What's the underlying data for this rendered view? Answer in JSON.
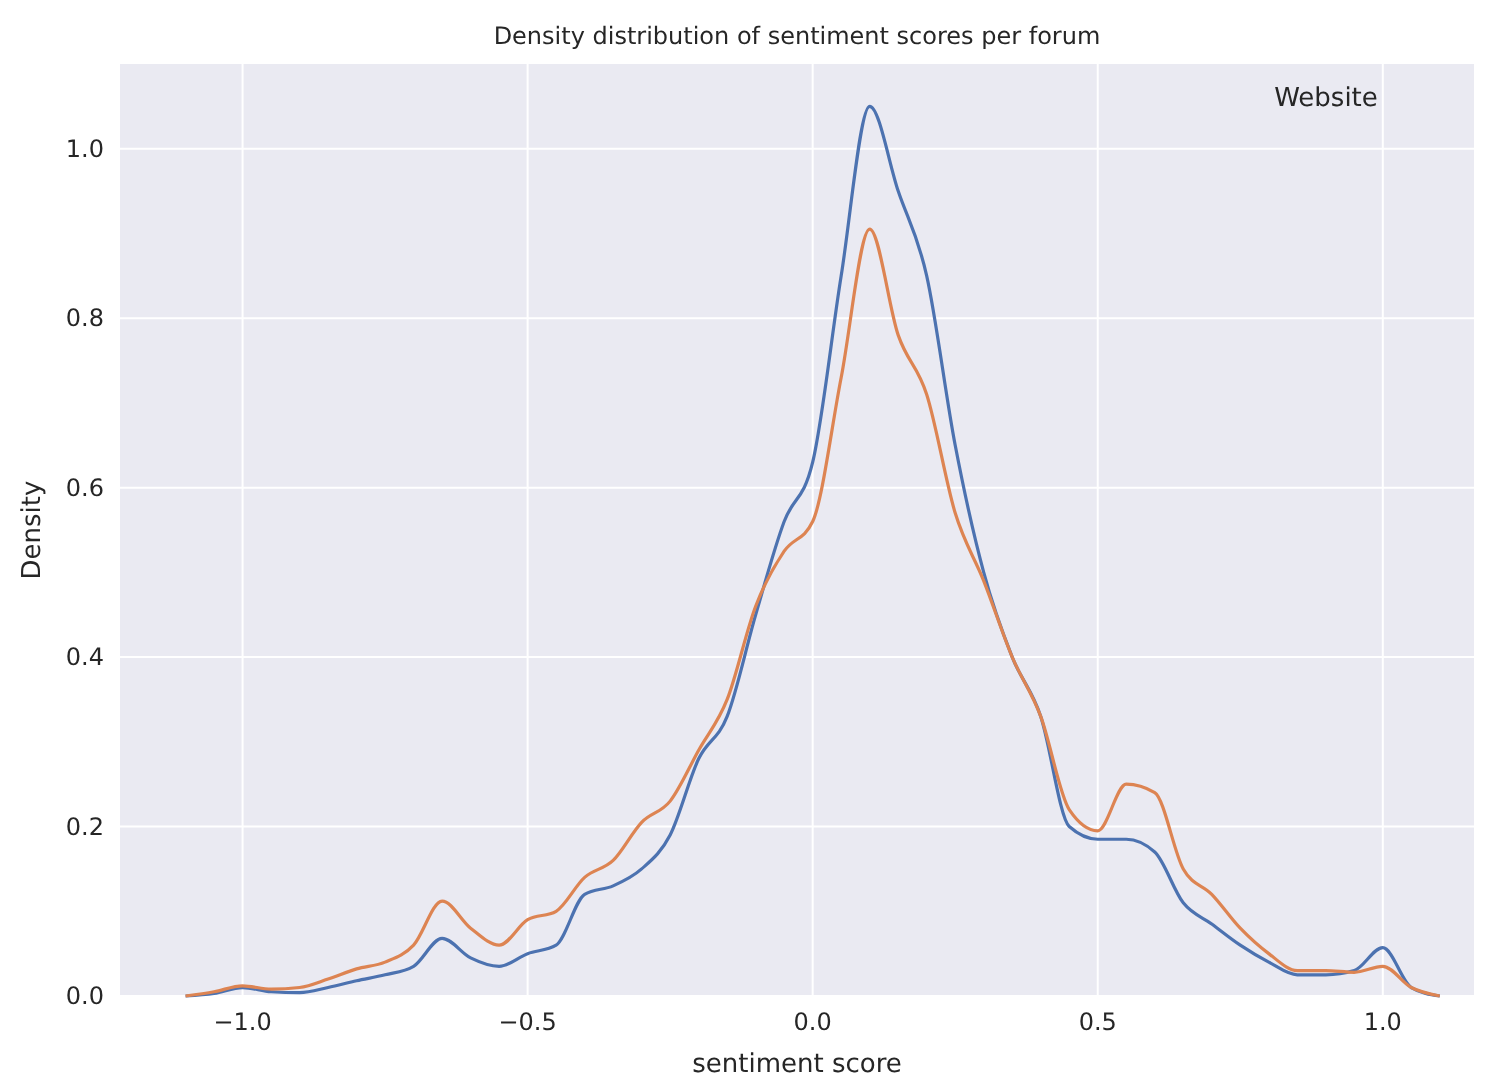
{
  "chart_data": {
    "type": "line",
    "title": "Density distribution of sentiment scores per forum",
    "xlabel": "sentiment score",
    "ylabel": "Density",
    "legend_title": "Website",
    "grid": true,
    "x": [
      -1.1,
      -1.05,
      -1.0,
      -0.95,
      -0.9,
      -0.85,
      -0.8,
      -0.75,
      -0.7,
      -0.65,
      -0.6,
      -0.55,
      -0.5,
      -0.45,
      -0.4,
      -0.35,
      -0.3,
      -0.25,
      -0.2,
      -0.15,
      -0.1,
      -0.05,
      0.0,
      0.05,
      0.1,
      0.15,
      0.2,
      0.25,
      0.3,
      0.35,
      0.4,
      0.45,
      0.5,
      0.55,
      0.6,
      0.65,
      0.7,
      0.75,
      0.8,
      0.85,
      0.9,
      0.95,
      1.0,
      1.05,
      1.1
    ],
    "series": [
      {
        "color": "#4c72b0",
        "values": [
          0,
          0.003,
          0.01,
          0.005,
          0.004,
          0.01,
          0.018,
          0.025,
          0.035,
          0.068,
          0.045,
          0.035,
          0.05,
          0.06,
          0.12,
          0.13,
          0.15,
          0.19,
          0.28,
          0.33,
          0.45,
          0.56,
          0.63,
          0.85,
          1.05,
          0.95,
          0.85,
          0.65,
          0.5,
          0.4,
          0.33,
          0.2,
          0.185,
          0.185,
          0.17,
          0.11,
          0.085,
          0.06,
          0.04,
          0.025,
          0.025,
          0.03,
          0.057,
          0.01,
          0
        ]
      },
      {
        "color": "#dd8452",
        "values": [
          0,
          0.005,
          0.012,
          0.008,
          0.01,
          0.02,
          0.032,
          0.04,
          0.06,
          0.112,
          0.08,
          0.06,
          0.09,
          0.1,
          0.14,
          0.16,
          0.205,
          0.23,
          0.29,
          0.35,
          0.46,
          0.525,
          0.56,
          0.73,
          0.905,
          0.78,
          0.71,
          0.57,
          0.49,
          0.4,
          0.33,
          0.22,
          0.195,
          0.25,
          0.24,
          0.15,
          0.12,
          0.08,
          0.05,
          0.03,
          0.03,
          0.028,
          0.035,
          0.01,
          0
        ]
      }
    ],
    "xlim": [
      -1.215,
      1.16
    ],
    "ylim": [
      0,
      1.1
    ],
    "xticks": [
      {
        "value": -1,
        "label": "−1.0"
      },
      {
        "value": -0.5,
        "label": "−0.5"
      },
      {
        "value": 0,
        "label": "0.0"
      },
      {
        "value": 0.5,
        "label": "0.5"
      },
      {
        "value": 1,
        "label": "1.0"
      }
    ],
    "yticks": [
      {
        "value": 0,
        "label": "0.0"
      },
      {
        "value": 0.2,
        "label": "0.2"
      },
      {
        "value": 0.4,
        "label": "0.4"
      },
      {
        "value": 0.6,
        "label": "0.6"
      },
      {
        "value": 0.8,
        "label": "0.8"
      },
      {
        "value": 1,
        "label": "1.0"
      }
    ]
  }
}
